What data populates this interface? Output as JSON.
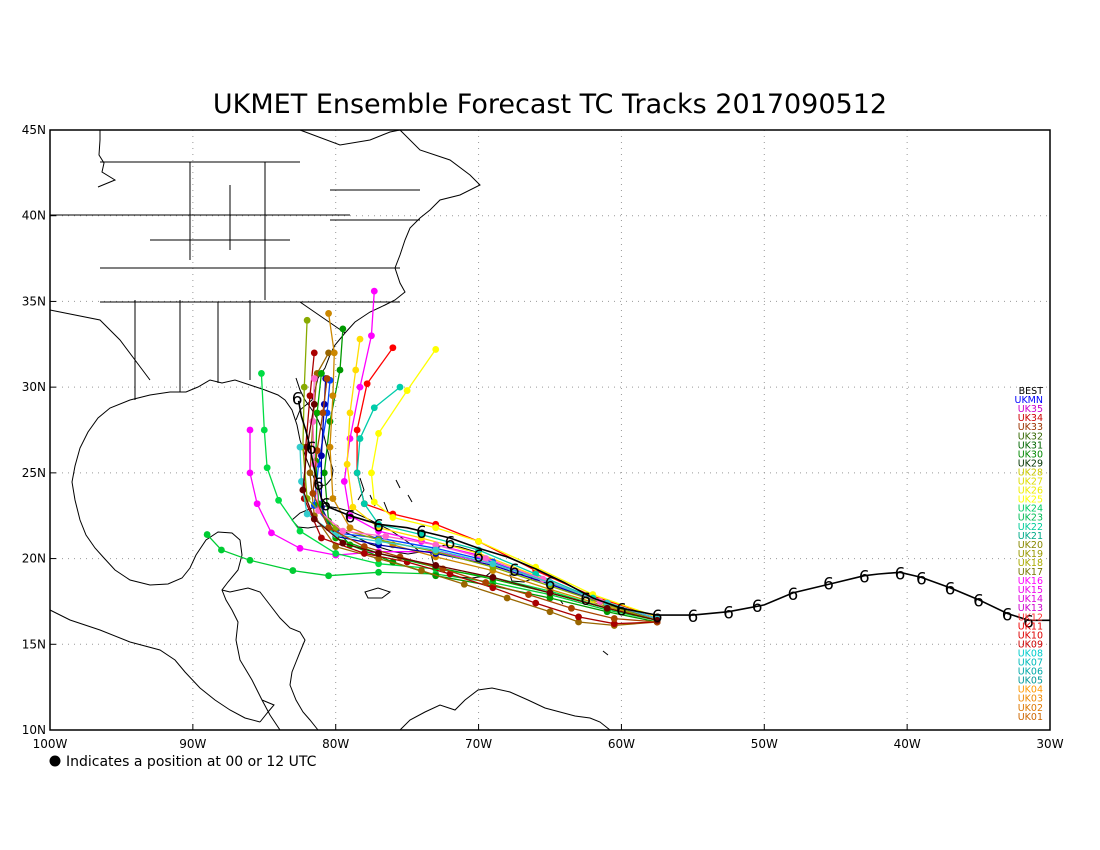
{
  "title": "UKMET Ensemble Forecast TC Tracks 2017090512",
  "footnote": "Indicates a position at 00 or 12 UTC",
  "map": {
    "lon_range": [
      -100,
      -30
    ],
    "lat_range": [
      10,
      45
    ],
    "lon_ticks": [
      {
        "value": -100,
        "label": "100W"
      },
      {
        "value": -90,
        "label": "90W"
      },
      {
        "value": -80,
        "label": "80W"
      },
      {
        "value": -70,
        "label": "70W"
      },
      {
        "value": -60,
        "label": "60W"
      },
      {
        "value": -50,
        "label": "50W"
      },
      {
        "value": -40,
        "label": "40W"
      },
      {
        "value": -30,
        "label": "30W"
      }
    ],
    "lat_ticks": [
      {
        "value": 10,
        "label": "10N"
      },
      {
        "value": 15,
        "label": "15N"
      },
      {
        "value": 20,
        "label": "20N"
      },
      {
        "value": 25,
        "label": "25N"
      },
      {
        "value": 30,
        "label": "30N"
      },
      {
        "value": 35,
        "label": "35N"
      },
      {
        "value": 40,
        "label": "40N"
      },
      {
        "value": 45,
        "label": "45N"
      }
    ],
    "grid": true,
    "best_track_color": "#000000",
    "hurricane_symbol": "6",
    "legend_placement": "right"
  },
  "best_track": [
    [
      -31.5,
      16.4
    ],
    [
      -33,
      16.8
    ],
    [
      -35,
      17.6
    ],
    [
      -37,
      18.3
    ],
    [
      -39,
      18.9
    ],
    [
      -40.5,
      19.2
    ],
    [
      -42,
      19.1
    ],
    [
      -43,
      19
    ],
    [
      -45,
      18.6
    ],
    [
      -48,
      18
    ],
    [
      -50,
      17.3
    ],
    [
      -52.5,
      16.9
    ],
    [
      -55,
      16.7
    ],
    [
      -57.5,
      16.7
    ],
    [
      -60,
      17.1
    ],
    [
      -62,
      17.7
    ],
    [
      -64,
      18.6
    ],
    [
      -66,
      19.4
    ],
    [
      -68,
      20.1
    ],
    [
      -70,
      20.6
    ],
    [
      -72,
      21.2
    ],
    [
      -74,
      21.6
    ],
    [
      -75,
      21.8
    ],
    [
      -77,
      22
    ],
    [
      -79,
      22.5
    ],
    [
      -80.5,
      23
    ],
    [
      -81,
      23.5
    ],
    [
      -81.3,
      24.5
    ],
    [
      -81.6,
      25.6
    ],
    [
      -81.8,
      26.5
    ],
    [
      -82.1,
      27.5
    ],
    [
      -82.4,
      28.3
    ],
    [
      -82.6,
      29.2
    ]
  ],
  "best_symbols": [
    [
      -31.5,
      16.4
    ],
    [
      -33,
      16.8
    ],
    [
      -35,
      17.6
    ],
    [
      -37,
      18.3
    ],
    [
      -39,
      18.9
    ],
    [
      -40.5,
      19.2
    ],
    [
      -43,
      19
    ],
    [
      -45.5,
      18.6
    ],
    [
      -48,
      18
    ],
    [
      -50.5,
      17.3
    ],
    [
      -52.5,
      16.9
    ],
    [
      -55,
      16.7
    ],
    [
      -57.5,
      16.7
    ],
    [
      -60,
      17.1
    ],
    [
      -62.5,
      17.7
    ],
    [
      -65,
      18.6
    ],
    [
      -67.5,
      19.4
    ],
    [
      -70,
      20.2
    ],
    [
      -72,
      21
    ],
    [
      -74,
      21.6
    ],
    [
      -77,
      22
    ],
    [
      -79,
      22.5
    ],
    [
      -80.7,
      23.2
    ],
    [
      -81.2,
      24.4
    ],
    [
      -81.7,
      26.5
    ],
    [
      -82.7,
      29.4
    ]
  ],
  "ensemble_tracks": [
    {
      "color": "#ff0000",
      "points": [
        [
          -57.5,
          16.6
        ],
        [
          -62,
          17.8
        ],
        [
          -66,
          19.3
        ],
        [
          -70,
          21
        ],
        [
          -73,
          22
        ],
        [
          -76,
          22.6
        ],
        [
          -78,
          23.2
        ],
        [
          -78.5,
          25
        ],
        [
          -78.5,
          27.5
        ],
        [
          -77.8,
          30.2
        ],
        [
          -76,
          32.3
        ]
      ]
    },
    {
      "color": "#ff00ff",
      "points": [
        [
          -57.5,
          16.5
        ],
        [
          -61,
          17.4
        ],
        [
          -65,
          18.6
        ],
        [
          -69,
          19.7
        ],
        [
          -73,
          20.4
        ],
        [
          -77,
          20.4
        ],
        [
          -80,
          20.2
        ],
        [
          -82.5,
          20.6
        ],
        [
          -84.5,
          21.5
        ],
        [
          -85.5,
          23.2
        ],
        [
          -86,
          25
        ],
        [
          -86,
          27.5
        ]
      ]
    },
    {
      "color": "#ff00ff",
      "points": [
        [
          -57.5,
          16.5
        ],
        [
          -62,
          17.6
        ],
        [
          -66,
          18.9
        ],
        [
          -70,
          20.2
        ],
        [
          -74,
          21
        ],
        [
          -77,
          21.6
        ],
        [
          -79,
          22.5
        ],
        [
          -79.4,
          24.5
        ],
        [
          -79,
          27
        ],
        [
          -78.3,
          30
        ],
        [
          -77.5,
          33
        ],
        [
          -77.3,
          35.6
        ]
      ]
    },
    {
      "color": "#00cc33",
      "points": [
        [
          -57.5,
          16.4
        ],
        [
          -61,
          17
        ],
        [
          -65,
          17.9
        ],
        [
          -69,
          18.6
        ],
        [
          -73,
          19.1
        ],
        [
          -77,
          19.2
        ],
        [
          -80.5,
          19
        ],
        [
          -83,
          19.3
        ],
        [
          -86,
          19.9
        ],
        [
          -88,
          20.5
        ],
        [
          -89,
          21.4
        ]
      ]
    },
    {
      "color": "#00dd44",
      "points": [
        [
          -57.5,
          16.4
        ],
        [
          -61,
          17.1
        ],
        [
          -65,
          18.1
        ],
        [
          -69,
          18.9
        ],
        [
          -73,
          19.4
        ],
        [
          -77,
          19.7
        ],
        [
          -80,
          20.3
        ],
        [
          -82.5,
          21.6
        ],
        [
          -84,
          23.4
        ],
        [
          -84.8,
          25.3
        ],
        [
          -85,
          27.5
        ],
        [
          -85.2,
          30.8
        ]
      ]
    },
    {
      "color": "#009900",
      "points": [
        [
          -57.5,
          16.3
        ],
        [
          -61,
          16.9
        ],
        [
          -65,
          17.7
        ],
        [
          -69,
          18.4
        ],
        [
          -73,
          19
        ],
        [
          -76,
          19.8
        ],
        [
          -79,
          20.8
        ],
        [
          -80.5,
          22.2
        ],
        [
          -80.8,
          25
        ],
        [
          -80.4,
          28
        ],
        [
          -79.7,
          31
        ],
        [
          -79.5,
          33.4
        ]
      ]
    },
    {
      "color": "#996600",
      "points": [
        [
          -57.5,
          16.3
        ],
        [
          -60.5,
          16.1
        ],
        [
          -63,
          16.3
        ],
        [
          -65,
          16.9
        ],
        [
          -68,
          17.7
        ],
        [
          -71,
          18.5
        ],
        [
          -74,
          19.3
        ],
        [
          -77,
          20
        ],
        [
          -80,
          20.7
        ],
        [
          -81.5,
          22.5
        ],
        [
          -81.8,
          25
        ],
        [
          -81.6,
          28
        ],
        [
          -81.3,
          30.8
        ],
        [
          -80.5,
          32
        ]
      ]
    },
    {
      "color": "#cc8800",
      "points": [
        [
          -57.5,
          16.4
        ],
        [
          -61,
          17.2
        ],
        [
          -65,
          18.2
        ],
        [
          -69,
          19.3
        ],
        [
          -73,
          20.1
        ],
        [
          -76,
          20.8
        ],
        [
          -79,
          21.8
        ],
        [
          -80.2,
          23.5
        ],
        [
          -80.4,
          26.5
        ],
        [
          -80.2,
          29.5
        ],
        [
          -80.1,
          32
        ],
        [
          -80.5,
          34.3
        ]
      ]
    },
    {
      "color": "#ffff00",
      "points": [
        [
          -57.5,
          16.6
        ],
        [
          -62,
          17.9
        ],
        [
          -66,
          19.5
        ],
        [
          -70,
          21
        ],
        [
          -73,
          21.8
        ],
        [
          -76,
          22.4
        ],
        [
          -77.3,
          23.3
        ],
        [
          -77.5,
          25
        ],
        [
          -77,
          27.3
        ],
        [
          -75,
          29.8
        ],
        [
          -73,
          32.2
        ]
      ]
    },
    {
      "color": "#ffdd00",
      "points": [
        [
          -57.5,
          16.5
        ],
        [
          -62,
          17.6
        ],
        [
          -66,
          19
        ],
        [
          -70,
          20.3
        ],
        [
          -74,
          21.2
        ],
        [
          -77,
          21.8
        ],
        [
          -78.8,
          23
        ],
        [
          -79.2,
          25.5
        ],
        [
          -79,
          28.5
        ],
        [
          -78.6,
          31
        ],
        [
          -78.3,
          32.8
        ]
      ]
    },
    {
      "color": "#00ccaa",
      "points": [
        [
          -57.5,
          16.5
        ],
        [
          -62,
          17.7
        ],
        [
          -66,
          19.1
        ],
        [
          -70,
          20.5
        ],
        [
          -74,
          21.4
        ],
        [
          -77,
          22
        ],
        [
          -78,
          23.2
        ],
        [
          -78.5,
          25
        ],
        [
          -78.3,
          27
        ],
        [
          -77.3,
          28.8
        ],
        [
          -75.5,
          30
        ]
      ]
    },
    {
      "color": "#0044ff",
      "points": [
        [
          -57.5,
          16.5
        ],
        [
          -61,
          17.4
        ],
        [
          -65,
          18.6
        ],
        [
          -69,
          19.8
        ],
        [
          -73,
          20.6
        ],
        [
          -77,
          21.2
        ],
        [
          -80,
          21.5
        ],
        [
          -81.5,
          23.1
        ],
        [
          -81.2,
          25.5
        ],
        [
          -80.6,
          28.5
        ],
        [
          -80.4,
          30.4
        ]
      ]
    },
    {
      "color": "#0000aa",
      "points": [
        [
          -57.5,
          16.5
        ],
        [
          -61,
          17.3
        ],
        [
          -65,
          18.5
        ],
        [
          -69,
          19.6
        ],
        [
          -73,
          20.3
        ],
        [
          -77,
          20.8
        ],
        [
          -80,
          21.3
        ],
        [
          -81,
          23
        ],
        [
          -81,
          26
        ],
        [
          -80.8,
          29
        ],
        [
          -80.7,
          30.5
        ]
      ]
    },
    {
      "color": "#aa0000",
      "points": [
        [
          -57.5,
          16.3
        ],
        [
          -60.5,
          16.2
        ],
        [
          -63,
          16.6
        ],
        [
          -66,
          17.4
        ],
        [
          -69,
          18.3
        ],
        [
          -72,
          19.1
        ],
        [
          -75,
          19.8
        ],
        [
          -78,
          20.3
        ],
        [
          -81,
          21.2
        ],
        [
          -82.2,
          23.5
        ],
        [
          -82.1,
          26.5
        ],
        [
          -81.8,
          29.5
        ],
        [
          -81.5,
          32
        ]
      ]
    },
    {
      "color": "#00aa00",
      "points": [
        [
          -57.5,
          16.4
        ],
        [
          -61,
          17.1
        ],
        [
          -65,
          18
        ],
        [
          -69,
          18.8
        ],
        [
          -73,
          19.5
        ],
        [
          -77,
          20.3
        ],
        [
          -80,
          21.2
        ],
        [
          -81.2,
          23.2
        ],
        [
          -81.4,
          25.7
        ],
        [
          -81.3,
          28.5
        ],
        [
          -81,
          30.8
        ]
      ]
    },
    {
      "color": "#88aa00",
      "points": [
        [
          -57.5,
          16.4
        ],
        [
          -61,
          17.3
        ],
        [
          -65,
          18.4
        ],
        [
          -69,
          19.5
        ],
        [
          -73,
          20.4
        ],
        [
          -77,
          21.1
        ],
        [
          -80,
          21.8
        ],
        [
          -82,
          23.5
        ],
        [
          -82.3,
          26.5
        ],
        [
          -82.2,
          30
        ],
        [
          -82,
          33.9
        ]
      ]
    },
    {
      "color": "#ff66cc",
      "points": [
        [
          -57.5,
          16.5
        ],
        [
          -61.5,
          17.5
        ],
        [
          -65.5,
          18.8
        ],
        [
          -69.5,
          20
        ],
        [
          -73,
          20.8
        ],
        [
          -76.5,
          21.3
        ],
        [
          -79.5,
          21.6
        ],
        [
          -81.2,
          22.8
        ],
        [
          -81.5,
          25.5
        ],
        [
          -81.6,
          28
        ],
        [
          -81.5,
          30.5
        ]
      ]
    },
    {
      "color": "#33cccc",
      "points": [
        [
          -57.5,
          16.5
        ],
        [
          -61,
          17.4
        ],
        [
          -65,
          18.6
        ],
        [
          -69,
          19.7
        ],
        [
          -73,
          20.5
        ],
        [
          -77,
          21
        ],
        [
          -80,
          21.4
        ],
        [
          -82,
          22.6
        ],
        [
          -82.4,
          24.5
        ],
        [
          -82.5,
          26.5
        ]
      ]
    },
    {
      "color": "#aa4400",
      "points": [
        [
          -57.5,
          16.3
        ],
        [
          -60.5,
          16.5
        ],
        [
          -63.5,
          17.1
        ],
        [
          -66.5,
          17.9
        ],
        [
          -69.5,
          18.6
        ],
        [
          -72.5,
          19.4
        ],
        [
          -75.5,
          20.1
        ],
        [
          -78,
          20.7
        ],
        [
          -80.5,
          21.8
        ],
        [
          -81.6,
          23.8
        ],
        [
          -81.3,
          26.3
        ],
        [
          -80.9,
          28.5
        ],
        [
          -80.6,
          30.5
        ]
      ]
    },
    {
      "color": "#660000",
      "points": [
        [
          -57.5,
          16.4
        ],
        [
          -61,
          17.1
        ],
        [
          -65,
          18
        ],
        [
          -69,
          18.9
        ],
        [
          -73,
          19.6
        ],
        [
          -77,
          20.3
        ],
        [
          -79.5,
          20.9
        ],
        [
          -81.5,
          22.3
        ],
        [
          -82.3,
          24
        ],
        [
          -82,
          26.5
        ],
        [
          -81.5,
          29
        ]
      ]
    }
  ],
  "legend": [
    {
      "label": "BEST",
      "color": "#000000"
    },
    {
      "label": "UKMN",
      "color": "#0000ff"
    },
    {
      "label": "UK35",
      "color": "#cc00cc"
    },
    {
      "label": "UK34",
      "color": "#cc0000"
    },
    {
      "label": "UK33",
      "color": "#993300"
    },
    {
      "label": "UK32",
      "color": "#336600"
    },
    {
      "label": "UK31",
      "color": "#006600"
    },
    {
      "label": "UK30",
      "color": "#008800"
    },
    {
      "label": "UK29",
      "color": "#003300"
    },
    {
      "label": "UK28",
      "color": "#cccc00"
    },
    {
      "label": "UK27",
      "color": "#dddd00"
    },
    {
      "label": "UK26",
      "color": "#eeee00"
    },
    {
      "label": "UK25",
      "color": "#ffff00"
    },
    {
      "label": "UK24",
      "color": "#00cc66"
    },
    {
      "label": "UK23",
      "color": "#00bb55"
    },
    {
      "label": "UK22",
      "color": "#00cc99"
    },
    {
      "label": "UK21",
      "color": "#00aa88"
    },
    {
      "label": "UK20",
      "color": "#888800"
    },
    {
      "label": "UK19",
      "color": "#999900"
    },
    {
      "label": "UK18",
      "color": "#aaaa00"
    },
    {
      "label": "UK17",
      "color": "#777700"
    },
    {
      "label": "UK16",
      "color": "#ff00ff"
    },
    {
      "label": "UK15",
      "color": "#ee00ee"
    },
    {
      "label": "UK14",
      "color": "#dd00dd"
    },
    {
      "label": "UK13",
      "color": "#cc00cc"
    },
    {
      "label": "UK12",
      "color": "#ff3333"
    },
    {
      "label": "UK11",
      "color": "#ee0000"
    },
    {
      "label": "UK10",
      "color": "#dd0000"
    },
    {
      "label": "UK09",
      "color": "#cc0000"
    },
    {
      "label": "UK08",
      "color": "#00cccc"
    },
    {
      "label": "UK07",
      "color": "#00bbbb"
    },
    {
      "label": "UK06",
      "color": "#00aaaa"
    },
    {
      "label": "UK05",
      "color": "#009999"
    },
    {
      "label": "UK04",
      "color": "#ff9900"
    },
    {
      "label": "UK03",
      "color": "#ee8800"
    },
    {
      "label": "UK02",
      "color": "#dd7700"
    },
    {
      "label": "UK01",
      "color": "#cc6600"
    }
  ]
}
